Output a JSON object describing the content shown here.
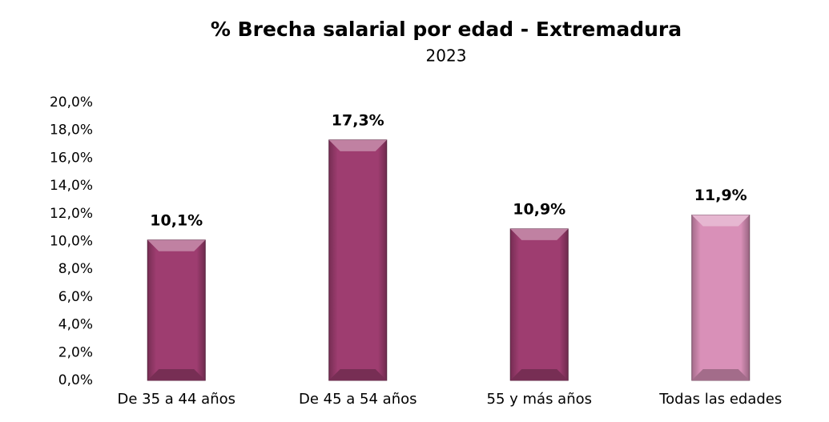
{
  "chart_data": {
    "type": "bar",
    "title": "% Brecha salarial por edad - Extremadura",
    "subtitle": "2023",
    "categories": [
      "De 35 a 44 años",
      "De 45 a 54 años",
      "55 y más años",
      "Todas las edades"
    ],
    "values": [
      10.1,
      17.3,
      10.9,
      11.9
    ],
    "value_labels": [
      "10,1%",
      "17,3%",
      "10,9%",
      "11,9%"
    ],
    "colors": [
      "#9e3d70",
      "#9e3d70",
      "#9e3d70",
      "#d990b8"
    ],
    "ylim": [
      0,
      20
    ],
    "yticks": [
      {
        "value": 0,
        "label": "0,0%"
      },
      {
        "value": 2,
        "label": "2,0%"
      },
      {
        "value": 4,
        "label": "4,0%"
      },
      {
        "value": 6,
        "label": "6,0%"
      },
      {
        "value": 8,
        "label": "8,0%"
      },
      {
        "value": 10,
        "label": "10,0%"
      },
      {
        "value": 12,
        "label": "12,0%"
      },
      {
        "value": 14,
        "label": "14,0%"
      },
      {
        "value": 16,
        "label": "16,0%"
      },
      {
        "value": 18,
        "label": "18,0%"
      },
      {
        "value": 20,
        "label": "20,0%"
      }
    ],
    "grid": false
  }
}
